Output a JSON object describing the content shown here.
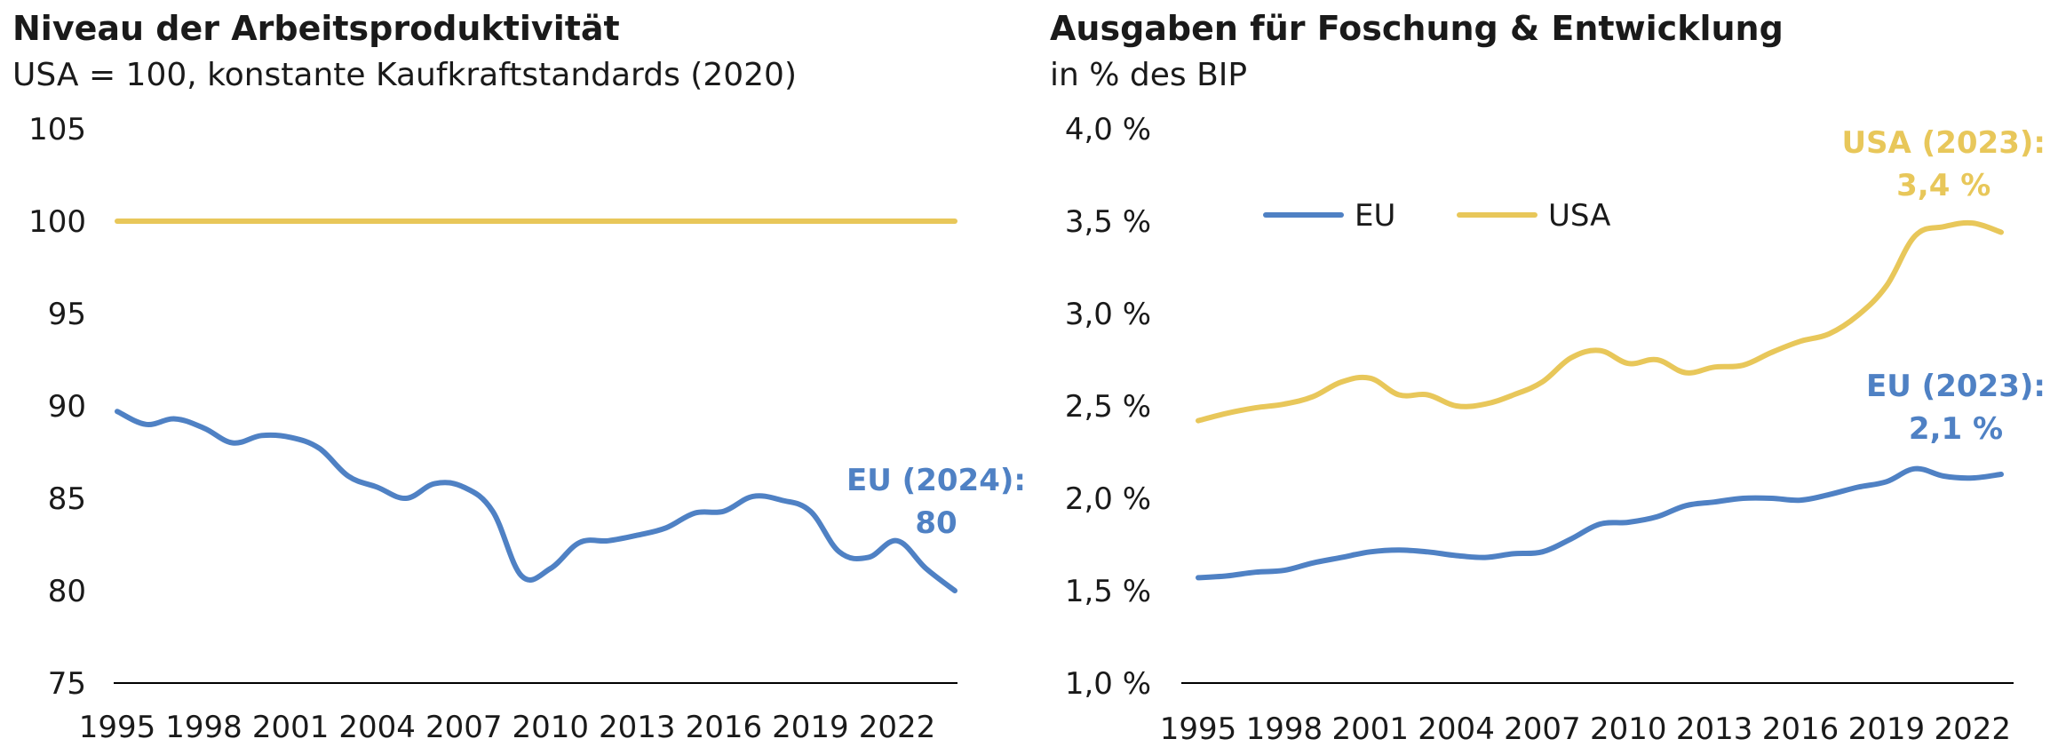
{
  "colors": {
    "eu": "#4f81c4",
    "usa": "#e8c75a",
    "axis": "#000000"
  },
  "chart_data": [
    {
      "type": "line",
      "title": "Niveau der Arbeitsproduktivität",
      "subtitle": "USA = 100, konstante Kaufkraftstandards (2020)",
      "xlabel": "",
      "ylabel": "",
      "ylim": [
        75,
        105
      ],
      "yticks": [
        105,
        100,
        95,
        90,
        85,
        80,
        75
      ],
      "ytick_labels": [
        "105",
        "100",
        "95",
        "90",
        "85",
        "80",
        "75"
      ],
      "xlim": [
        1995,
        2024
      ],
      "xticks": [
        1995,
        1998,
        2001,
        2004,
        2007,
        2010,
        2013,
        2016,
        2019,
        2022
      ],
      "xtick_labels": [
        "1995",
        "1998",
        "2001",
        "2004",
        "2007",
        "2010",
        "2013",
        "2016",
        "2019",
        "2022"
      ],
      "grid": false,
      "series": [
        {
          "key": "usa",
          "x": [
            1995,
            1996,
            1997,
            1998,
            1999,
            2000,
            2001,
            2002,
            2003,
            2004,
            2005,
            2006,
            2007,
            2008,
            2009,
            2010,
            2011,
            2012,
            2013,
            2014,
            2015,
            2016,
            2017,
            2018,
            2019,
            2020,
            2021,
            2022,
            2023,
            2024
          ],
          "values": [
            100,
            100,
            100,
            100,
            100,
            100,
            100,
            100,
            100,
            100,
            100,
            100,
            100,
            100,
            100,
            100,
            100,
            100,
            100,
            100,
            100,
            100,
            100,
            100,
            100,
            100,
            100,
            100,
            100,
            100
          ]
        },
        {
          "key": "eu",
          "x": [
            1995,
            1996,
            1997,
            1998,
            1999,
            2000,
            2001,
            2002,
            2003,
            2004,
            2005,
            2006,
            2007,
            2008,
            2009,
            2010,
            2011,
            2012,
            2013,
            2014,
            2015,
            2016,
            2017,
            2018,
            2019,
            2020,
            2021,
            2022,
            2023,
            2024
          ],
          "values": [
            89.7,
            89.0,
            89.3,
            88.8,
            88.0,
            88.4,
            88.3,
            87.7,
            86.2,
            85.6,
            85.0,
            85.8,
            85.6,
            84.3,
            80.8,
            81.2,
            82.6,
            82.7,
            83.0,
            83.4,
            84.2,
            84.3,
            85.1,
            84.9,
            84.3,
            82.1,
            81.8,
            82.7,
            81.2,
            80.0
          ]
        }
      ],
      "annotations": [
        {
          "series": "eu",
          "lines": [
            "EU (2024):",
            "80"
          ]
        }
      ]
    },
    {
      "type": "line",
      "title": "Ausgaben für Foschung & Entwicklung",
      "subtitle": "in % des BIP",
      "xlabel": "",
      "ylabel": "",
      "ylim": [
        1.0,
        4.0
      ],
      "yticks": [
        4.0,
        3.5,
        3.0,
        2.5,
        2.0,
        1.5,
        1.0
      ],
      "ytick_labels": [
        "4,0 %",
        "3,5 %",
        "3,0 %",
        "2,5 %",
        "2,0 %",
        "1,5 %",
        "1,0 %"
      ],
      "xlim": [
        1995,
        2023
      ],
      "xticks": [
        1995,
        1998,
        2001,
        2004,
        2007,
        2010,
        2013,
        2016,
        2019,
        2022
      ],
      "xtick_labels": [
        "1995",
        "1998",
        "2001",
        "2004",
        "2007",
        "2010",
        "2013",
        "2016",
        "2019",
        "2022"
      ],
      "grid": false,
      "legend": {
        "placement": "top-left",
        "entries": [
          {
            "key": "eu",
            "label": "EU"
          },
          {
            "key": "usa",
            "label": "USA"
          }
        ]
      },
      "series": [
        {
          "key": "eu",
          "name": "EU",
          "x": [
            1995,
            1996,
            1997,
            1998,
            1999,
            2000,
            2001,
            2002,
            2003,
            2004,
            2005,
            2006,
            2007,
            2008,
            2009,
            2010,
            2011,
            2012,
            2013,
            2014,
            2015,
            2016,
            2017,
            2018,
            2019,
            2020,
            2021,
            2022,
            2023
          ],
          "values": [
            1.57,
            1.58,
            1.6,
            1.61,
            1.65,
            1.68,
            1.71,
            1.72,
            1.71,
            1.69,
            1.68,
            1.7,
            1.71,
            1.78,
            1.86,
            1.87,
            1.9,
            1.96,
            1.98,
            2.0,
            2.0,
            1.99,
            2.02,
            2.06,
            2.09,
            2.16,
            2.12,
            2.11,
            2.13
          ]
        },
        {
          "key": "usa",
          "name": "USA",
          "x": [
            1995,
            1996,
            1997,
            1998,
            1999,
            2000,
            2001,
            2002,
            2003,
            2004,
            2005,
            2006,
            2007,
            2008,
            2009,
            2010,
            2011,
            2012,
            2013,
            2014,
            2015,
            2016,
            2017,
            2018,
            2019,
            2020,
            2021,
            2022,
            2023
          ],
          "values": [
            2.42,
            2.46,
            2.49,
            2.51,
            2.55,
            2.63,
            2.65,
            2.56,
            2.56,
            2.5,
            2.51,
            2.56,
            2.63,
            2.76,
            2.8,
            2.73,
            2.75,
            2.68,
            2.71,
            2.72,
            2.79,
            2.85,
            2.89,
            2.99,
            3.15,
            3.42,
            3.47,
            3.49,
            3.44
          ]
        }
      ],
      "annotations": [
        {
          "series": "usa",
          "lines": [
            "USA (2023):",
            "3,4 %"
          ]
        },
        {
          "series": "eu",
          "lines": [
            "EU (2023):",
            "2,1 %"
          ]
        }
      ]
    }
  ]
}
